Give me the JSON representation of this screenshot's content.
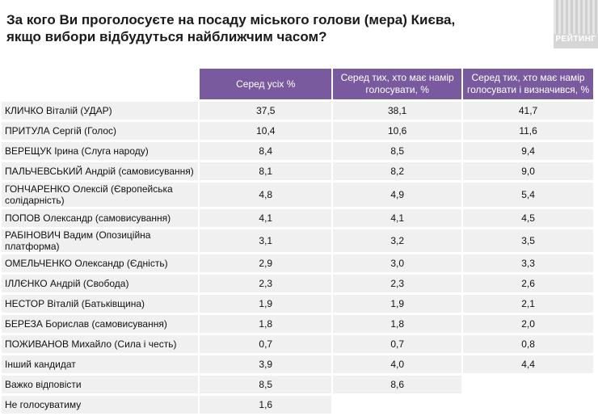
{
  "title": "За кого Ви проголосуєте на посаду міського голови (мера) Києва, якщо вибори відбудуться найближчим часом?",
  "logo_text": "РЕЙТИНГ",
  "colors": {
    "header_bg": "#7a5a9e",
    "row_bg": "#f0f0f0"
  },
  "columns": [
    "Серед усіх %",
    "Серед тих, хто має намір голосувати, %",
    "Серед тих, хто має намір голосувати і визначився, %"
  ],
  "rows": [
    {
      "name": "КЛИЧКО Віталій (УДАР)",
      "values": [
        "37,5",
        "38,1",
        "41,7"
      ]
    },
    {
      "name": "ПРИТУЛА Сергій (Голос)",
      "values": [
        "10,4",
        "10,6",
        "11,6"
      ]
    },
    {
      "name": "ВЕРЕЩУК Ірина (Слуга народу)",
      "values": [
        "8,4",
        "8,5",
        "9,4"
      ]
    },
    {
      "name": "ПАЛЬЧЕВСЬКИЙ Андрій (самовисування)",
      "values": [
        "8,1",
        "8,2",
        "9,0"
      ]
    },
    {
      "name": "ГОНЧАРЕНКО Олексій (Європейська солідарність)",
      "values": [
        "4,8",
        "4,9",
        "5,4"
      ]
    },
    {
      "name": "ПОПОВ Олександр (самовисування)",
      "values": [
        "4,1",
        "4,1",
        "4,5"
      ]
    },
    {
      "name": "РАБІНОВИЧ Вадим (Опозиційна платформа)",
      "values": [
        "3,1",
        "3,2",
        "3,5"
      ]
    },
    {
      "name": "ОМЕЛЬЧЕНКО Олександр (Єдність)",
      "values": [
        "2,9",
        "3,0",
        "3,3"
      ]
    },
    {
      "name": "ІЛЛЄНКО Андрій (Свобода)",
      "values": [
        "2,3",
        "2,3",
        "2,6"
      ]
    },
    {
      "name": "НЕСТОР Віталій (Батьківщина)",
      "values": [
        "1,9",
        "1,9",
        "2,1"
      ]
    },
    {
      "name": "БЕРЕЗА Борислав (самовисування)",
      "values": [
        "1,8",
        "1,8",
        "2,0"
      ]
    },
    {
      "name": "ПОЖИВАНОВ Михайло (Сила і честь)",
      "values": [
        "0,7",
        "0,7",
        "0,8"
      ]
    },
    {
      "name": "Інший кандидат",
      "values": [
        "3,9",
        "4,0",
        "4,4"
      ]
    },
    {
      "name": "Важко відповісти",
      "values": [
        "8,5",
        "8,6"
      ]
    },
    {
      "name": "Не голосуватиму",
      "values": [
        "1,6"
      ]
    }
  ]
}
